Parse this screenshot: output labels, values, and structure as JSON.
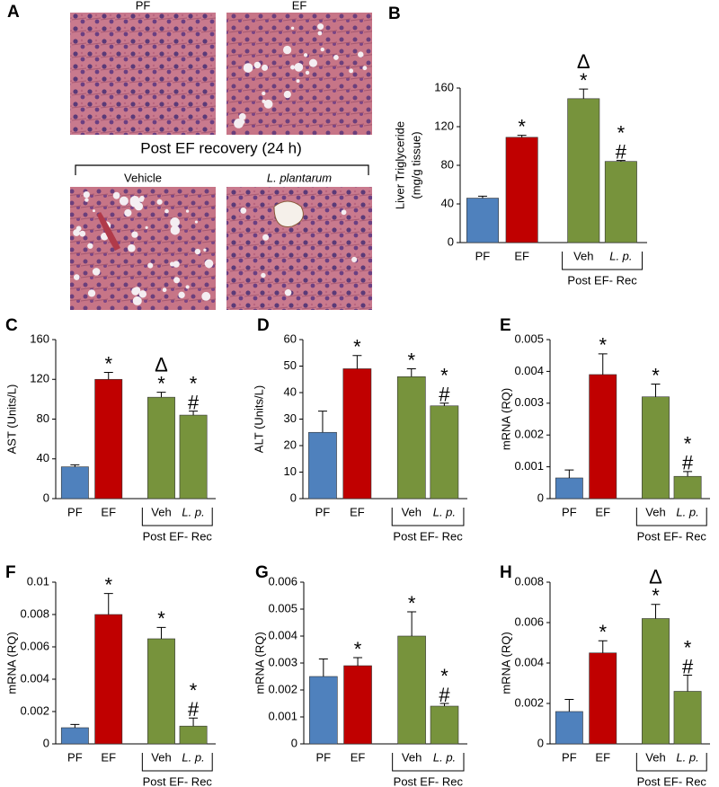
{
  "panel_a": {
    "label": "A",
    "images": [
      "PF",
      "EF"
    ],
    "recovery_title": "Post EF recovery (24 h)",
    "recovery_images": [
      "Vehicle",
      "L. plantarum"
    ]
  },
  "chart_data": [
    {
      "type": "bar",
      "panel": "B",
      "ylabel": [
        "Liver Triglyceride",
        "(mg/g tissue)"
      ],
      "categories": [
        "PF",
        "EF",
        "Veh",
        "L. p."
      ],
      "group_label": "Post EF- Rec",
      "values": [
        46,
        109,
        149,
        84
      ],
      "errors": [
        2,
        2,
        10,
        1
      ],
      "colors": [
        "#4f81bd",
        "#c00000",
        "#77933c",
        "#77933c"
      ],
      "annotations": [
        [],
        [
          "*"
        ],
        [
          "Δ",
          "*"
        ],
        [
          "*",
          "#"
        ]
      ],
      "ylim": [
        0,
        160
      ],
      "yticks": [
        0,
        40,
        80,
        120,
        160
      ]
    },
    {
      "type": "bar",
      "panel": "C",
      "ylabel": [
        "AST (Units/L)"
      ],
      "categories": [
        "PF",
        "EF",
        "Veh",
        "L. p."
      ],
      "group_label": "Post EF- Rec",
      "values": [
        32,
        120,
        102,
        84
      ],
      "errors": [
        2,
        7,
        5,
        4
      ],
      "colors": [
        "#4f81bd",
        "#c00000",
        "#77933c",
        "#77933c"
      ],
      "annotations": [
        [],
        [
          "*"
        ],
        [
          "Δ",
          "*"
        ],
        [
          "*",
          "#"
        ]
      ],
      "ylim": [
        0,
        160
      ],
      "yticks": [
        0,
        40,
        80,
        120,
        160
      ]
    },
    {
      "type": "bar",
      "panel": "D",
      "ylabel": [
        "ALT (Units/L)"
      ],
      "categories": [
        "PF",
        "EF",
        "Veh",
        "L. p."
      ],
      "group_label": "Post EF- Rec",
      "values": [
        25,
        49,
        46,
        35
      ],
      "errors": [
        8,
        5,
        3,
        1
      ],
      "colors": [
        "#4f81bd",
        "#c00000",
        "#77933c",
        "#77933c"
      ],
      "annotations": [
        [],
        [
          "*"
        ],
        [
          "*"
        ],
        [
          "*",
          "#"
        ]
      ],
      "ylim": [
        0,
        60
      ],
      "yticks": [
        0,
        10,
        20,
        30,
        40,
        50,
        60
      ]
    },
    {
      "type": "bar",
      "panel": "E",
      "ylabel": [
        "mRNA (RQ)"
      ],
      "categories": [
        "PF",
        "EF",
        "Veh",
        "L. p."
      ],
      "group_label": "Post EF- Rec",
      "values": [
        0.00065,
        0.0039,
        0.0032,
        0.0007
      ],
      "errors": [
        0.00025,
        0.00065,
        0.0004,
        0.00015
      ],
      "colors": [
        "#4f81bd",
        "#c00000",
        "#77933c",
        "#77933c"
      ],
      "annotations": [
        [],
        [
          "*"
        ],
        [
          "*"
        ],
        [
          "*",
          "#"
        ]
      ],
      "ylim": [
        0,
        0.005
      ],
      "yticks": [
        0,
        0.001,
        0.002,
        0.003,
        0.004,
        0.005
      ]
    },
    {
      "type": "bar",
      "panel": "F",
      "ylabel": [
        "mRNA (RQ)"
      ],
      "categories": [
        "PF",
        "EF",
        "Veh",
        "L. p."
      ],
      "group_label": "Post EF- Rec",
      "values": [
        0.001,
        0.008,
        0.0065,
        0.0011
      ],
      "errors": [
        0.0002,
        0.0013,
        0.0007,
        0.0005
      ],
      "colors": [
        "#4f81bd",
        "#c00000",
        "#77933c",
        "#77933c"
      ],
      "annotations": [
        [],
        [
          "*"
        ],
        [
          "*"
        ],
        [
          "*",
          "#"
        ]
      ],
      "ylim": [
        0,
        0.01
      ],
      "yticks": [
        0,
        0.002,
        0.004,
        0.006,
        0.008,
        0.01
      ]
    },
    {
      "type": "bar",
      "panel": "G",
      "ylabel": [
        "mRNA (RQ)"
      ],
      "categories": [
        "PF",
        "EF",
        "Veh",
        "L. p."
      ],
      "group_label": "Post EF- Rec",
      "values": [
        0.0025,
        0.0029,
        0.004,
        0.0014
      ],
      "errors": [
        0.00065,
        0.0003,
        0.0009,
        0.0001
      ],
      "colors": [
        "#4f81bd",
        "#c00000",
        "#77933c",
        "#77933c"
      ],
      "annotations": [
        [],
        [
          "*"
        ],
        [
          "*"
        ],
        [
          "*",
          "#"
        ]
      ],
      "ylim": [
        0,
        0.006
      ],
      "yticks": [
        0,
        0.001,
        0.002,
        0.003,
        0.004,
        0.005,
        0.006
      ]
    },
    {
      "type": "bar",
      "panel": "H",
      "ylabel": [
        "mRNA (RQ)"
      ],
      "categories": [
        "PF",
        "EF",
        "Veh",
        "L. p."
      ],
      "group_label": "Post EF- Rec",
      "values": [
        0.0016,
        0.0045,
        0.0062,
        0.0026
      ],
      "errors": [
        0.0006,
        0.0006,
        0.0007,
        0.0008
      ],
      "colors": [
        "#4f81bd",
        "#c00000",
        "#77933c",
        "#77933c"
      ],
      "annotations": [
        [],
        [
          "*"
        ],
        [
          "Δ",
          "*"
        ],
        [
          "*",
          "#"
        ]
      ],
      "ylim": [
        0,
        0.008
      ],
      "yticks": [
        0,
        0.002,
        0.004,
        0.006,
        0.008
      ]
    }
  ]
}
